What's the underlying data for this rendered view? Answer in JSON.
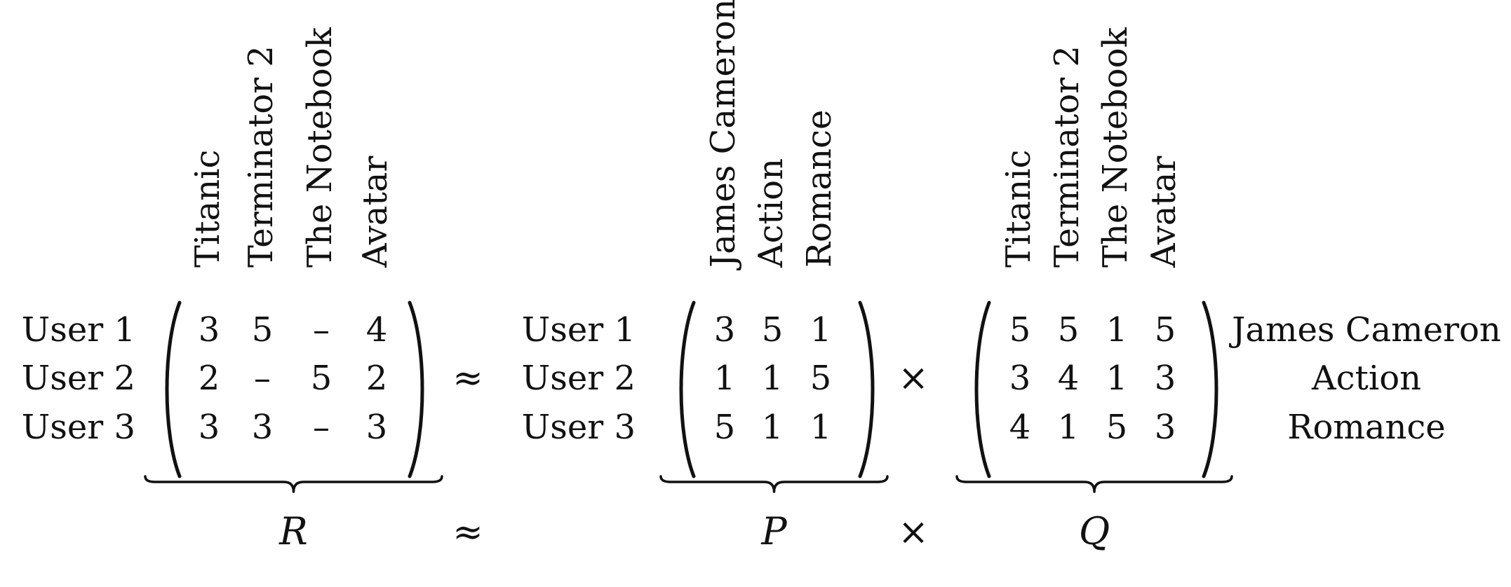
{
  "matrices": [
    {
      "id": "R",
      "name": "R",
      "row_labels": [
        "User 1",
        "User 2",
        "User 3"
      ],
      "column_labels": [
        "Titanic",
        "Terminator 2",
        "The Notebook",
        "Avatar"
      ],
      "values": [
        [
          "3",
          "5",
          "–",
          "4"
        ],
        [
          "2",
          "–",
          "5",
          "2"
        ],
        [
          "3",
          "3",
          "–",
          "3"
        ]
      ]
    },
    {
      "id": "P",
      "name": "P",
      "row_labels": [
        "User 1",
        "User 2",
        "User 3"
      ],
      "column_labels": [
        "James Cameron",
        "Action",
        "Romance"
      ],
      "values": [
        [
          "3",
          "5",
          "1"
        ],
        [
          "1",
          "1",
          "5"
        ],
        [
          "5",
          "1",
          "1"
        ]
      ]
    },
    {
      "id": "Q",
      "name": "Q",
      "row_labels_right": [
        "James Cameron",
        "Action",
        "Romance"
      ],
      "column_labels": [
        "Titanic",
        "Terminator 2",
        "The Notebook",
        "Avatar"
      ],
      "values": [
        [
          "5",
          "5",
          "1",
          "5"
        ],
        [
          "3",
          "4",
          "1",
          "3"
        ],
        [
          "4",
          "1",
          "5",
          "3"
        ]
      ]
    }
  ],
  "operators": {
    "approx": "≈",
    "times": "×"
  }
}
